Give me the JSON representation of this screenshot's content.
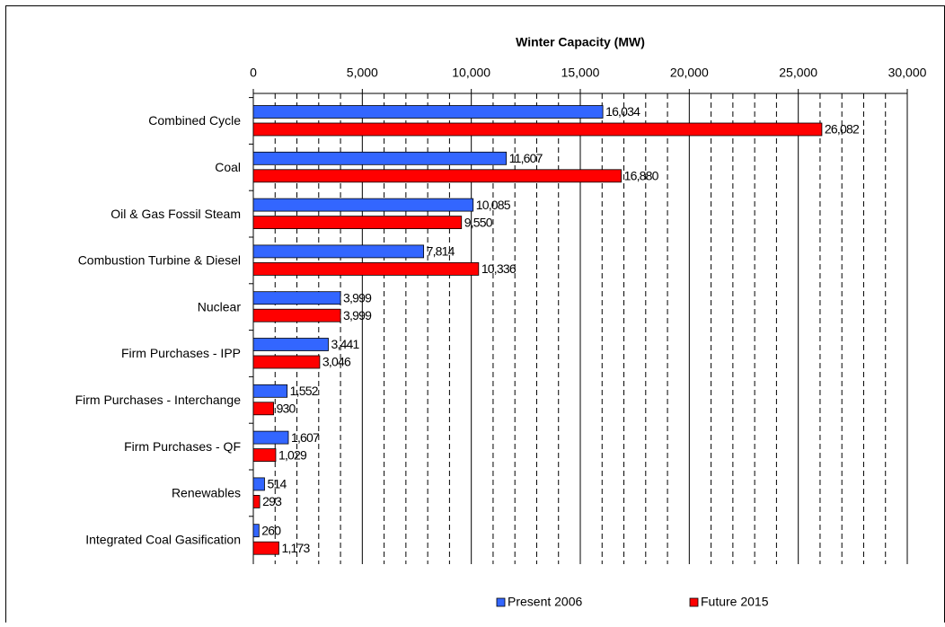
{
  "chart_data": {
    "type": "hbar",
    "x_label": "Winter Capacity (MW)",
    "categories": [
      "Combined Cycle",
      "Coal",
      "Oil & Gas Fossil Steam",
      "Combustion Turbine & Diesel",
      "Nuclear",
      "Firm Purchases - IPP",
      "Firm Purchases - Interchange",
      "Firm Purchases - QF",
      "Renewables",
      "Integrated Coal Gasification"
    ],
    "series": [
      {
        "name": "Present 2006",
        "color": "#3366ff",
        "values": [
          16034,
          11607,
          10085,
          7814,
          3999,
          3441,
          1552,
          1607,
          514,
          260
        ],
        "value_labels": [
          "16,034",
          "11,607",
          "10,085",
          "7,814",
          "3,999",
          "3,441",
          "1,552",
          "1,607",
          "514",
          "260"
        ]
      },
      {
        "name": "Future 2015",
        "color": "#ff0000",
        "values": [
          26082,
          16880,
          9550,
          10336,
          3999,
          3046,
          930,
          1029,
          293,
          1173
        ],
        "value_labels": [
          "26,082",
          "16,880",
          "9,550",
          "10,336",
          "3,999",
          "3,046",
          "930",
          "1,029",
          "293",
          "1,173"
        ]
      }
    ],
    "xlim": [
      0,
      30000
    ],
    "xticks": [
      0,
      {
        "value": 5000,
        "label": "5,000"
      },
      {
        "value": 10000,
        "label": "10,000"
      },
      {
        "value": 15000,
        "label": "15,000"
      },
      {
        "value": 20000,
        "label": "20,000"
      },
      {
        "value": 25000,
        "label": "25,000"
      },
      {
        "value": 30000,
        "label": "30,000"
      }
    ],
    "minor_grid": [
      1000,
      2000,
      3000,
      4000,
      6000,
      7000,
      8000,
      9000,
      11000,
      12000,
      13000,
      14000,
      16000,
      17000,
      18000,
      19000,
      21000,
      22000,
      23000,
      24000,
      26000,
      27000,
      28000,
      29000
    ],
    "grid": true,
    "legend": "bottom"
  }
}
